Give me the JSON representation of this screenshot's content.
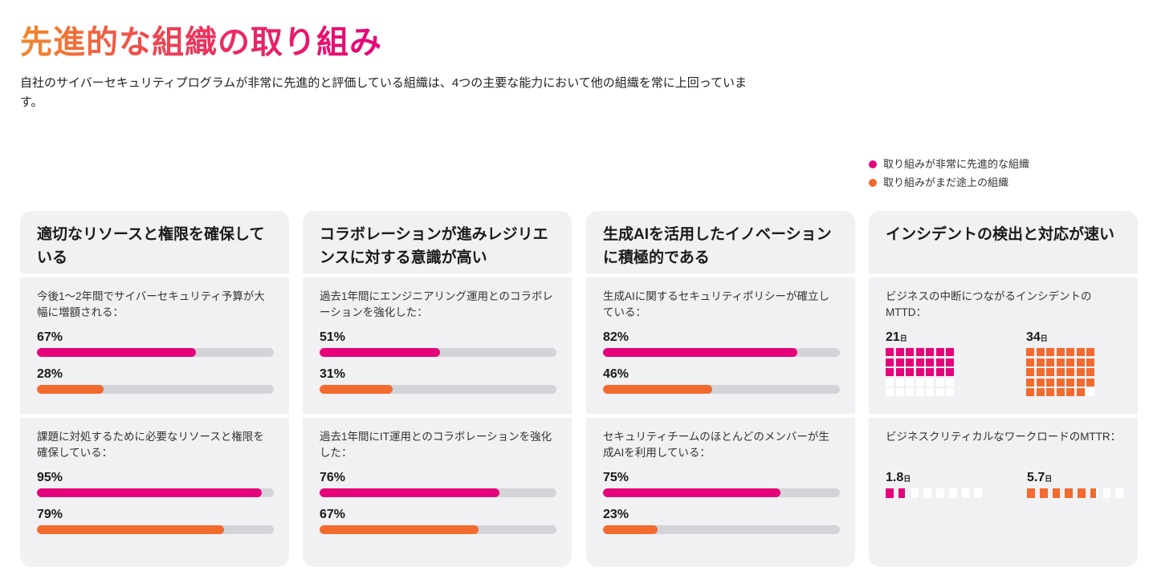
{
  "title": "先進的な組織の取り組み",
  "description": "自社のサイバーセキュリティプログラムが非常に先進的と評価している組織は、4つの主要な能力において他の組織を常に上回っています。",
  "colors": {
    "advanced": "#e6007a",
    "developing": "#f26a2e"
  },
  "legend": [
    {
      "label": "取り組みが非常に先進的な組織",
      "color": "#e6007a"
    },
    {
      "label": "取り組みがまだ途上の組織",
      "color": "#f26a2e"
    }
  ],
  "chart_data": {
    "type": "bar",
    "series_names": [
      "取り組みが非常に先進的な組織",
      "取り組みがまだ途上の組織"
    ],
    "cards": [
      {
        "title": "適切なリソースと権限を確保している",
        "items": [
          {
            "question": "今後1〜2年間でサイバーセキュリティ予算が大幅に増額される：",
            "values": [
              67,
              28
            ],
            "labels": [
              "67%",
              "28%"
            ]
          },
          {
            "question": "課題に対処するために必要なリソースと権限を確保している：",
            "values": [
              95,
              79
            ],
            "labels": [
              "95%",
              "79%"
            ]
          }
        ]
      },
      {
        "title": "コラボレーションが進みレジリエンスに対する意識が高い",
        "items": [
          {
            "question": "過去1年間にエンジニアリング運用とのコラボレーションを強化した：",
            "values": [
              51,
              31
            ],
            "labels": [
              "51%",
              "31%"
            ]
          },
          {
            "question": "過去1年間にIT運用とのコラボレーションを強化した：",
            "values": [
              76,
              67
            ],
            "labels": [
              "76%",
              "67%"
            ]
          }
        ]
      },
      {
        "title": "生成AIを活用したイノベーションに積極的である",
        "items": [
          {
            "question": "生成AIに関するセキュリティポリシーが確立している：",
            "values": [
              82,
              46
            ],
            "labels": [
              "82%",
              "46%"
            ]
          },
          {
            "question": "セキュリティチームのほとんどのメンバーが生成AIを利用している：",
            "values": [
              75,
              23
            ],
            "labels": [
              "75%",
              "23%"
            ]
          }
        ]
      }
    ],
    "waffle_card": {
      "title": "インシデントの検出と対応が速い",
      "unit": "日",
      "items": [
        {
          "question": "ビジネスの中断につながるインシデントのMTTD：",
          "values": [
            21,
            34
          ],
          "labels": [
            "21",
            "34"
          ],
          "total": 35
        },
        {
          "question": "ビジネスクリティカルなワークロードのMTTR：",
          "values": [
            1.8,
            5.7
          ],
          "labels": [
            "1.8",
            "5.7"
          ],
          "total": 8
        }
      ]
    }
  }
}
